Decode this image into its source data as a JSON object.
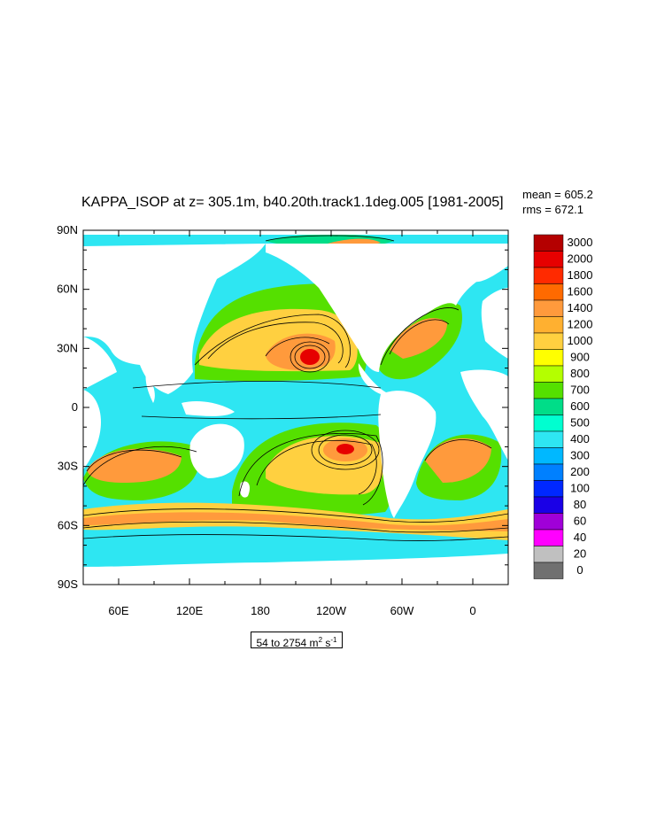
{
  "title": "KAPPA_ISOP at z= 305.1m, b40.20th.track1.1deg.005 [1981-2005]",
  "stats": {
    "mean": "mean = 605.2",
    "rms": "rms = 672.1"
  },
  "units": {
    "range": "54 to 2754 m",
    "sup1": "2",
    "mid": " s",
    "sup2": "-1"
  },
  "y_axis_labels": [
    "90N",
    "60N",
    "30N",
    "0",
    "30S",
    "60S",
    "90S"
  ],
  "x_axis_labels": [
    "60E",
    "120E",
    "180",
    "120W",
    "60W",
    "0"
  ],
  "legend": {
    "levels": [
      "3000",
      "2000",
      "1800",
      "1600",
      "1400",
      "1200",
      "1000",
      "900",
      "800",
      "700",
      "600",
      "500",
      "400",
      "300",
      "200",
      "100",
      "80",
      "60",
      "40",
      "20",
      "0"
    ],
    "colors": [
      "#b40000",
      "#e60000",
      "#ff2a00",
      "#ff6a00",
      "#ff9a3c",
      "#ffb030",
      "#ffd040",
      "#ffff00",
      "#b4ff00",
      "#55e000",
      "#00dd88",
      "#00ffd0",
      "#2ee6f2",
      "#00b8ff",
      "#0080ff",
      "#0028ff",
      "#1a00e6",
      "#a000d8",
      "#ff00ff",
      "#c0c0c0",
      "#707070"
    ]
  },
  "colors": {
    "land": "#ffffff",
    "ocean_base": "#2ee6f2",
    "contour": "#000000"
  }
}
